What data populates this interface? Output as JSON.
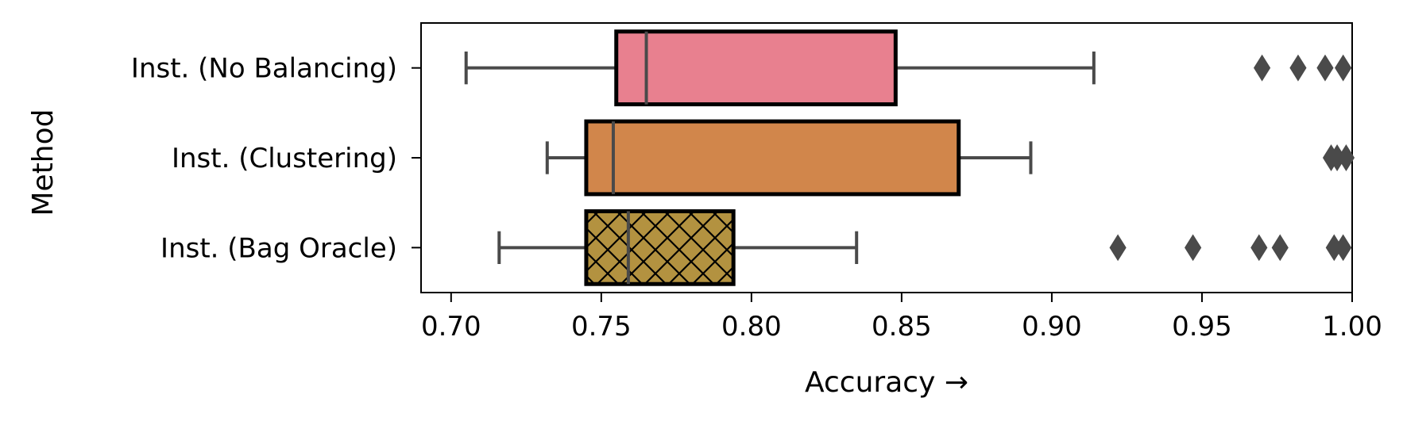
{
  "chart_data": {
    "type": "boxplot",
    "orientation": "horizontal",
    "xlabel": "Accuracy  →",
    "ylabel": "Method",
    "xlim": [
      0.69,
      1.0
    ],
    "xticks": [
      0.7,
      0.75,
      0.8,
      0.85,
      0.9,
      0.95,
      1.0
    ],
    "xtick_labels": [
      "0.70",
      "0.75",
      "0.80",
      "0.85",
      "0.90",
      "0.95",
      "1.00"
    ],
    "grid": false,
    "legend": "none",
    "categories": [
      "Inst. (No Balancing)",
      "Inst. (Clustering)",
      "Inst. (Bag Oracle)"
    ],
    "series": [
      {
        "name": "Inst. (No Balancing)",
        "whisker_low": 0.705,
        "q1": 0.755,
        "median": 0.765,
        "q3": 0.848,
        "whisker_high": 0.914,
        "outliers": [
          0.97,
          0.982,
          0.991,
          0.997
        ],
        "color": "#e8808f",
        "hatch": false
      },
      {
        "name": "Inst. (Clustering)",
        "whisker_low": 0.732,
        "q1": 0.745,
        "median": 0.754,
        "q3": 0.869,
        "whisker_high": 0.893,
        "outliers": [
          0.993,
          0.995,
          0.998
        ],
        "color": "#d1864b",
        "hatch": false
      },
      {
        "name": "Inst. (Bag Oracle)",
        "whisker_low": 0.716,
        "q1": 0.745,
        "median": 0.759,
        "q3": 0.794,
        "whisker_high": 0.835,
        "outliers": [
          0.922,
          0.947,
          0.969,
          0.976,
          0.994,
          0.997
        ],
        "color": "#b39240",
        "hatch": true
      }
    ]
  }
}
